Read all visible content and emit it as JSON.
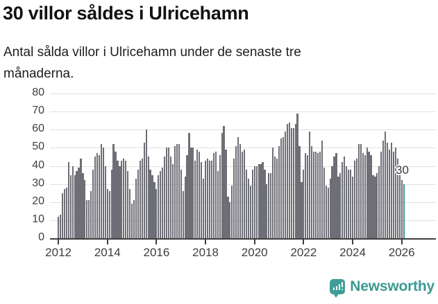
{
  "header": {
    "title": "30 villor såldes i Ulricehamn",
    "subtitle_lines": [
      "Antal sålda villor i Ulricehamn under de senaste tre",
      "månaderna."
    ]
  },
  "branding": {
    "logo_text": "Newsworthy",
    "logo_color": "#3D9B94"
  },
  "colors": {
    "bar": "#6E6E76",
    "highlight": "#2F9B96",
    "gridline": "#E0E0E0",
    "axis": "#3F3F3F",
    "text": "#3D3D3D"
  },
  "chart_data": {
    "type": "bar",
    "title": "30 villor såldes i Ulricehamn",
    "subtitle": "Antal sålda villor i Ulricehamn under de senaste tre månaderna.",
    "xlabel": "",
    "ylabel": "",
    "ylim": [
      0,
      80
    ],
    "grid": true,
    "y_ticks": [
      0,
      10,
      20,
      30,
      40,
      50,
      60,
      70,
      80
    ],
    "x_ticks": [
      {
        "label": "2012",
        "index": 0
      },
      {
        "label": "2014",
        "index": 24
      },
      {
        "label": "2016",
        "index": 48
      },
      {
        "label": "2018",
        "index": 72
      },
      {
        "label": "2020",
        "index": 96
      },
      {
        "label": "2022",
        "index": 120
      },
      {
        "label": "2024",
        "index": 144
      },
      {
        "label": "2026",
        "index": 168
      }
    ],
    "values": [
      12,
      13,
      25,
      27,
      28,
      42,
      35,
      40,
      35,
      37,
      39,
      44,
      36,
      32,
      21,
      21,
      26,
      38,
      45,
      47,
      46,
      52,
      50,
      40,
      27,
      26,
      38,
      52,
      48,
      43,
      40,
      43,
      44,
      43,
      37,
      27,
      19,
      21,
      33,
      38,
      43,
      44,
      53,
      60,
      45,
      38,
      35,
      31,
      27,
      35,
      37,
      39,
      45,
      50,
      50,
      45,
      41,
      51,
      52,
      52,
      38,
      26,
      34,
      46,
      58,
      50,
      50,
      43,
      49,
      48,
      42,
      33,
      43,
      44,
      43,
      43,
      47,
      48,
      37,
      46,
      58,
      62,
      49,
      23,
      20,
      29,
      44,
      51,
      56,
      52,
      48,
      49,
      38,
      33,
      29,
      38,
      40,
      40,
      41,
      41,
      42,
      38,
      30,
      36,
      36,
      50,
      45,
      44,
      51,
      55,
      56,
      59,
      63,
      64,
      61,
      61,
      63,
      69,
      51,
      31,
      38,
      47,
      46,
      59,
      51,
      48,
      48,
      47,
      48,
      54,
      39,
      29,
      28,
      33,
      40,
      45,
      47,
      34,
      36,
      42,
      45,
      40,
      38,
      38,
      34,
      43,
      44,
      52,
      52,
      47,
      46,
      50,
      48,
      46,
      35,
      34,
      36,
      40,
      48,
      54,
      59,
      53,
      49,
      53,
      48,
      50,
      44,
      38,
      32,
      30
    ],
    "highlight": {
      "index": 169,
      "value": 30,
      "label": "30"
    }
  }
}
